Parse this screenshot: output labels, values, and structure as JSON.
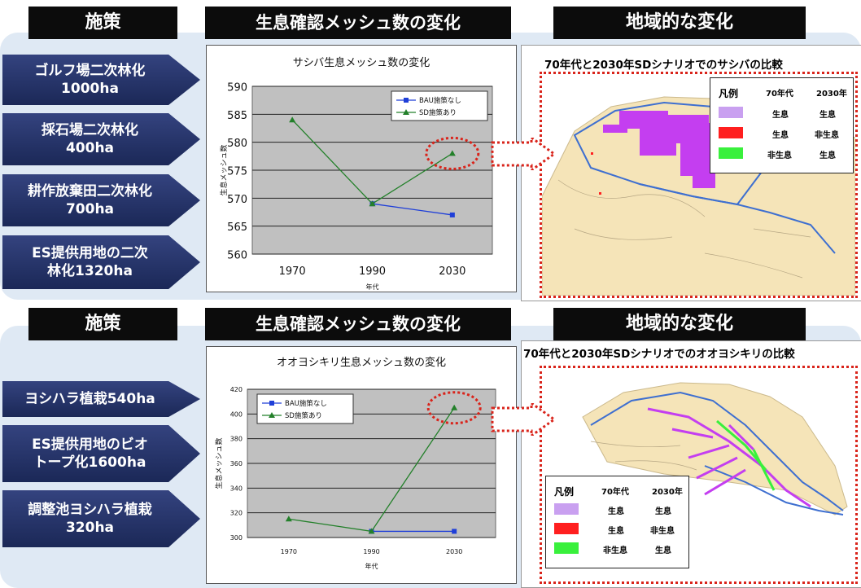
{
  "colors": {
    "arrow": "#22305f",
    "legend_purple": "#c9a0f0",
    "legend_red": "#ff1f1f",
    "legend_green": "#39f03c",
    "bau": "#1f3fd8",
    "sd": "#23802a",
    "highlight": "#d9241b"
  },
  "top": {
    "header_policy": "施策",
    "header_change": "生息確認メッシュ数の変化",
    "header_regional": "地域的な変化",
    "policies": [
      {
        "text": "ゴルフ場二次林化\n1000ha"
      },
      {
        "text": "採石場二次林化\n400ha"
      },
      {
        "text": "耕作放棄田二次林化\n700ha"
      },
      {
        "text": "ES提供用地の二次\n林化1320ha"
      }
    ],
    "map_title": "70年代と2030年SDシナリオでのサシバの比較",
    "legend": {
      "title": "凡例",
      "col1": "70年代",
      "col2": "2030年",
      "rows": [
        {
          "c1": "生息",
          "c2": "生息"
        },
        {
          "c1": "生息",
          "c2": "非生息"
        },
        {
          "c1": "非生息",
          "c2": "生息"
        }
      ]
    }
  },
  "bottom": {
    "header_policy": "施策",
    "header_change": "生息確認メッシュ数の変化",
    "header_regional": "地域的な変化",
    "policies": [
      {
        "text": "ヨシハラ植栽540ha"
      },
      {
        "text": "ES提供用地のビオ\nトープ化1600ha"
      },
      {
        "text": "調整池ヨシハラ植栽\n320ha"
      }
    ],
    "map_title": "70年代と2030年SDシナリオでのオオヨシキリの比較",
    "legend": {
      "title": "凡例",
      "col1": "70年代",
      "col2": "2030年",
      "rows": [
        {
          "c1": "生息",
          "c2": "生息"
        },
        {
          "c1": "生息",
          "c2": "非生息"
        },
        {
          "c1": "非生息",
          "c2": "生息"
        }
      ]
    }
  },
  "chart_data": [
    {
      "type": "line",
      "title": "サシバ生息メッシュ数の変化",
      "xlabel": "年代",
      "ylabel": "生息メッシュ数",
      "categories": [
        "1970",
        "1990",
        "2030"
      ],
      "ylim": [
        560,
        590
      ],
      "yticks": [
        560,
        565,
        570,
        575,
        580,
        585,
        590
      ],
      "series": [
        {
          "name": "BAU施策なし",
          "values": [
            null,
            569,
            567
          ]
        },
        {
          "name": "SD施策あり",
          "values": [
            584,
            569,
            578
          ]
        }
      ],
      "legend": "top-right",
      "grid": true
    },
    {
      "type": "line",
      "title": "オオヨシキリ生息メッシュ数の変化",
      "xlabel": "年代",
      "ylabel": "生息メッシュ数",
      "categories": [
        "1970",
        "1990",
        "2030"
      ],
      "ylim": [
        300,
        420
      ],
      "yticks": [
        300,
        320,
        340,
        360,
        380,
        400,
        420
      ],
      "series": [
        {
          "name": "BAU施策なし",
          "values": [
            null,
            305,
            305
          ]
        },
        {
          "name": "SD施策あり",
          "values": [
            315,
            305,
            405
          ]
        }
      ],
      "legend": "top-left",
      "grid": true
    }
  ]
}
